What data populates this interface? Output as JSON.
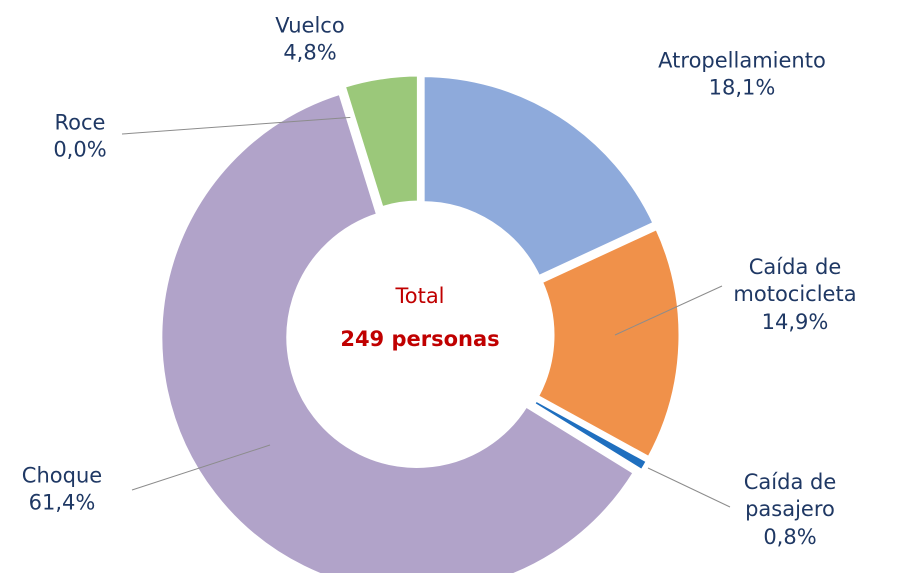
{
  "chart_data": {
    "type": "donut",
    "categories": [
      "Atropellamiento",
      "Caída de motocicleta",
      "Caída de pasajero",
      "Choque",
      "Roce",
      "Vuelco"
    ],
    "values": [
      18.1,
      14.9,
      0.8,
      61.4,
      0.0,
      4.8
    ],
    "value_labels": [
      "18,1%",
      "14,9%",
      "0,8%",
      "61,4%",
      "0,0%",
      "4,8%"
    ],
    "colors": [
      "#8eaadb",
      "#f0914a",
      "#1f6fbf",
      "#b1a3c9",
      "#a5a5a5",
      "#9bc87a"
    ],
    "center_label": "Total",
    "center_value": "249 personas"
  }
}
